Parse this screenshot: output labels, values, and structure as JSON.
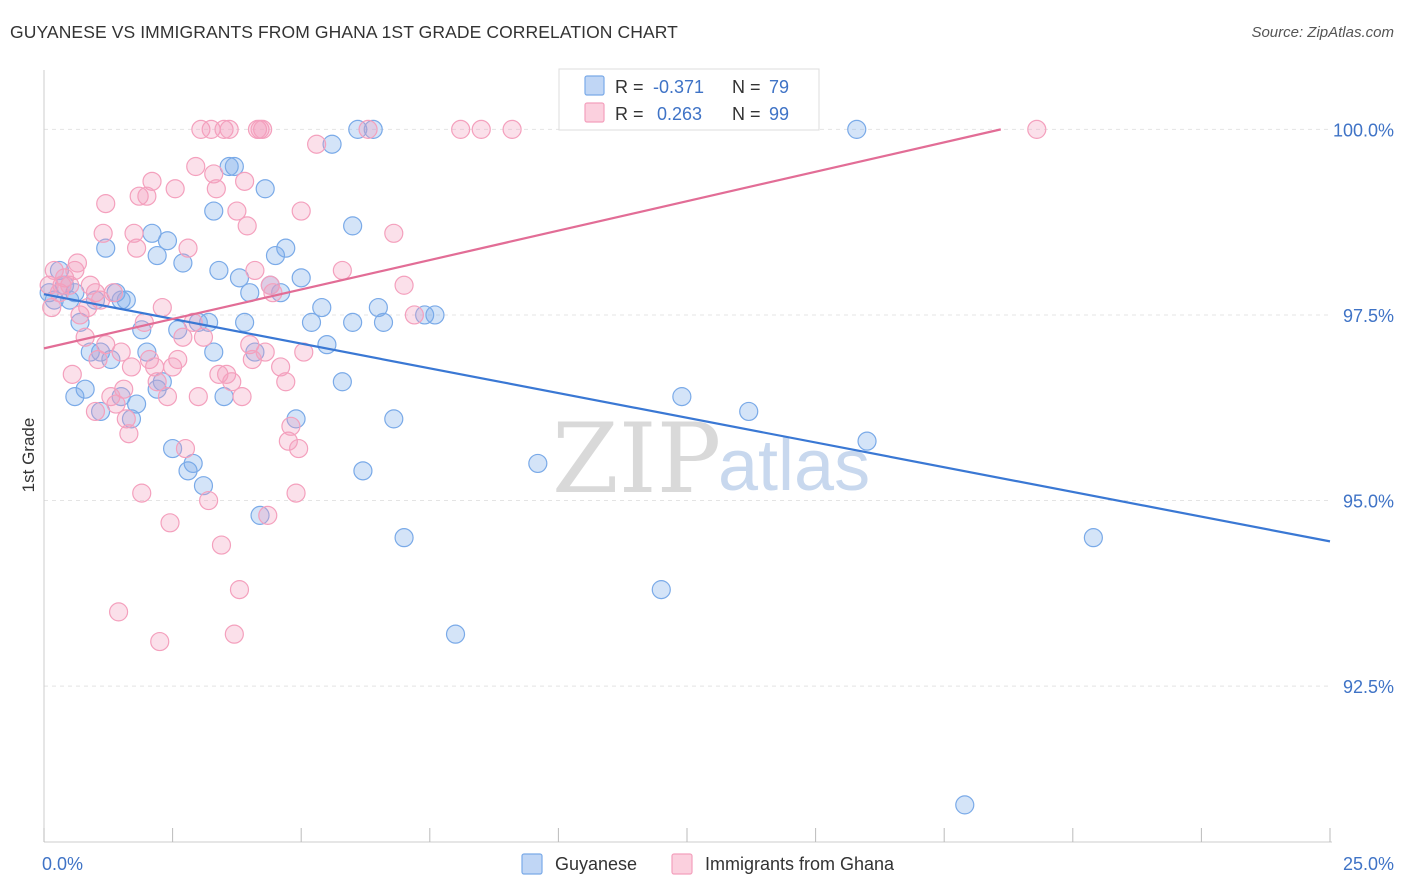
{
  "chart_data": {
    "type": "scatter",
    "title": "GUYANESE VS IMMIGRANTS FROM GHANA 1ST GRADE CORRELATION CHART",
    "source": "Source: ZipAtlas.com",
    "ylabel": "1st Grade",
    "xlabel": "",
    "xlim": [
      0,
      25
    ],
    "ylim": [
      90.4,
      100.8
    ],
    "x_tick_labels": [
      "0.0%",
      "25.0%"
    ],
    "y_ticks": [
      100.0,
      97.5,
      95.0,
      92.5
    ],
    "y_tick_labels": [
      "100.0%",
      "97.5%",
      "95.0%",
      "92.5%"
    ],
    "grid": true,
    "legend_position": "top-center",
    "watermark": {
      "zip": "ZIP",
      "atlas": "atlas"
    },
    "series": [
      {
        "name": "Guyanese",
        "color": "#7aaae8",
        "line_color": "#3a78d4",
        "legend_r_label": "R = ",
        "legend_r": "-0.371",
        "legend_n_label": "N = ",
        "legend_n": "79",
        "trend": {
          "x0": 0,
          "y0": 97.78,
          "x1": 25,
          "y1": 94.45
        },
        "points": [
          [
            0.1,
            97.8
          ],
          [
            0.2,
            97.7
          ],
          [
            0.3,
            98.1
          ],
          [
            0.4,
            97.9
          ],
          [
            0.5,
            97.7
          ],
          [
            0.6,
            97.8
          ],
          [
            0.6,
            96.4
          ],
          [
            0.7,
            97.4
          ],
          [
            0.8,
            96.5
          ],
          [
            0.9,
            97.0
          ],
          [
            1.0,
            97.7
          ],
          [
            1.1,
            97.0
          ],
          [
            1.1,
            96.2
          ],
          [
            1.2,
            98.4
          ],
          [
            1.3,
            96.9
          ],
          [
            1.4,
            97.8
          ],
          [
            1.5,
            97.7
          ],
          [
            1.5,
            96.4
          ],
          [
            1.6,
            97.7
          ],
          [
            1.7,
            96.1
          ],
          [
            1.8,
            96.3
          ],
          [
            1.9,
            97.3
          ],
          [
            2.0,
            97.0
          ],
          [
            2.1,
            98.6
          ],
          [
            2.2,
            96.5
          ],
          [
            2.2,
            98.3
          ],
          [
            2.3,
            96.6
          ],
          [
            2.4,
            98.5
          ],
          [
            2.5,
            95.7
          ],
          [
            2.6,
            97.3
          ],
          [
            2.7,
            98.2
          ],
          [
            2.8,
            95.4
          ],
          [
            2.9,
            95.5
          ],
          [
            3.0,
            97.4
          ],
          [
            3.1,
            95.2
          ],
          [
            3.2,
            97.4
          ],
          [
            3.3,
            98.9
          ],
          [
            3.3,
            97.0
          ],
          [
            3.4,
            98.1
          ],
          [
            3.5,
            96.4
          ],
          [
            3.6,
            99.5
          ],
          [
            3.7,
            99.5
          ],
          [
            3.8,
            98.0
          ],
          [
            3.9,
            97.4
          ],
          [
            4.0,
            97.8
          ],
          [
            4.1,
            97.0
          ],
          [
            4.2,
            94.8
          ],
          [
            4.3,
            99.2
          ],
          [
            4.4,
            97.9
          ],
          [
            4.5,
            98.3
          ],
          [
            4.6,
            97.8
          ],
          [
            4.7,
            98.4
          ],
          [
            4.9,
            96.1
          ],
          [
            5.0,
            98.0
          ],
          [
            5.2,
            97.4
          ],
          [
            5.4,
            97.6
          ],
          [
            5.5,
            97.1
          ],
          [
            5.6,
            99.8
          ],
          [
            5.8,
            96.6
          ],
          [
            6.0,
            98.7
          ],
          [
            6.0,
            97.4
          ],
          [
            6.2,
            95.4
          ],
          [
            6.1,
            100.0
          ],
          [
            6.4,
            100.0
          ],
          [
            6.5,
            97.6
          ],
          [
            6.6,
            97.4
          ],
          [
            6.8,
            96.1
          ],
          [
            7.0,
            94.5
          ],
          [
            7.4,
            97.5
          ],
          [
            7.6,
            97.5
          ],
          [
            8.0,
            93.2
          ],
          [
            9.6,
            95.5
          ],
          [
            12.0,
            93.8
          ],
          [
            12.4,
            96.4
          ],
          [
            13.7,
            96.2
          ],
          [
            15.8,
            100.0
          ],
          [
            16.0,
            95.8
          ],
          [
            17.9,
            90.9
          ],
          [
            20.4,
            94.5
          ]
        ]
      },
      {
        "name": "Immigrants from Ghana",
        "color": "#f4a0bd",
        "line_color": "#e26d96",
        "legend_r_label": "R = ",
        "legend_r": "0.263",
        "legend_n_label": "N = ",
        "legend_n": "99",
        "trend": {
          "x0": 0,
          "y0": 97.05,
          "x1": 18.6,
          "y1": 100.0
        },
        "points": [
          [
            0.1,
            97.9
          ],
          [
            0.15,
            97.6
          ],
          [
            0.2,
            98.1
          ],
          [
            0.3,
            97.8
          ],
          [
            0.35,
            97.9
          ],
          [
            0.4,
            98.0
          ],
          [
            0.5,
            97.9
          ],
          [
            0.55,
            96.7
          ],
          [
            0.6,
            98.1
          ],
          [
            0.65,
            98.2
          ],
          [
            0.7,
            97.5
          ],
          [
            0.8,
            97.2
          ],
          [
            0.85,
            97.6
          ],
          [
            0.9,
            97.9
          ],
          [
            1.0,
            97.8
          ],
          [
            1.0,
            96.2
          ],
          [
            1.05,
            96.9
          ],
          [
            1.1,
            97.7
          ],
          [
            1.15,
            98.6
          ],
          [
            1.2,
            99.0
          ],
          [
            1.2,
            97.1
          ],
          [
            1.3,
            96.4
          ],
          [
            1.35,
            97.8
          ],
          [
            1.4,
            96.3
          ],
          [
            1.45,
            93.5
          ],
          [
            1.5,
            97.0
          ],
          [
            1.55,
            96.5
          ],
          [
            1.6,
            96.1
          ],
          [
            1.65,
            95.9
          ],
          [
            1.7,
            96.8
          ],
          [
            1.75,
            98.6
          ],
          [
            1.8,
            98.4
          ],
          [
            1.85,
            99.1
          ],
          [
            1.9,
            95.1
          ],
          [
            1.95,
            97.4
          ],
          [
            2.0,
            99.1
          ],
          [
            2.05,
            96.9
          ],
          [
            2.1,
            99.3
          ],
          [
            2.15,
            96.8
          ],
          [
            2.2,
            96.6
          ],
          [
            2.25,
            93.1
          ],
          [
            2.3,
            97.6
          ],
          [
            2.4,
            96.4
          ],
          [
            2.45,
            94.7
          ],
          [
            2.5,
            96.8
          ],
          [
            2.55,
            99.2
          ],
          [
            2.6,
            96.9
          ],
          [
            2.7,
            97.2
          ],
          [
            2.75,
            95.7
          ],
          [
            2.8,
            98.4
          ],
          [
            2.9,
            97.4
          ],
          [
            2.95,
            99.5
          ],
          [
            3.0,
            96.4
          ],
          [
            3.05,
            100.0
          ],
          [
            3.1,
            97.2
          ],
          [
            3.2,
            95.0
          ],
          [
            3.25,
            100.0
          ],
          [
            3.3,
            99.4
          ],
          [
            3.35,
            99.2
          ],
          [
            3.4,
            96.7
          ],
          [
            3.45,
            94.4
          ],
          [
            3.5,
            100.0
          ],
          [
            3.55,
            96.7
          ],
          [
            3.6,
            100.0
          ],
          [
            3.65,
            96.6
          ],
          [
            3.7,
            93.2
          ],
          [
            3.75,
            98.9
          ],
          [
            3.8,
            93.8
          ],
          [
            3.85,
            96.4
          ],
          [
            3.9,
            99.3
          ],
          [
            3.95,
            98.7
          ],
          [
            4.0,
            97.1
          ],
          [
            4.05,
            96.9
          ],
          [
            4.1,
            98.1
          ],
          [
            4.15,
            100.0
          ],
          [
            4.2,
            100.0
          ],
          [
            4.25,
            100.0
          ],
          [
            4.3,
            97.0
          ],
          [
            4.35,
            94.8
          ],
          [
            4.4,
            97.9
          ],
          [
            4.45,
            97.8
          ],
          [
            4.6,
            96.8
          ],
          [
            4.7,
            96.6
          ],
          [
            4.75,
            95.8
          ],
          [
            4.8,
            96.0
          ],
          [
            4.9,
            95.1
          ],
          [
            4.95,
            95.7
          ],
          [
            5.0,
            98.9
          ],
          [
            5.05,
            97.0
          ],
          [
            5.3,
            99.8
          ],
          [
            5.8,
            98.1
          ],
          [
            6.3,
            100.0
          ],
          [
            6.8,
            98.6
          ],
          [
            7.0,
            97.9
          ],
          [
            7.2,
            97.5
          ],
          [
            8.1,
            100.0
          ],
          [
            8.5,
            100.0
          ],
          [
            9.1,
            100.0
          ],
          [
            19.3,
            100.0
          ]
        ]
      }
    ]
  }
}
